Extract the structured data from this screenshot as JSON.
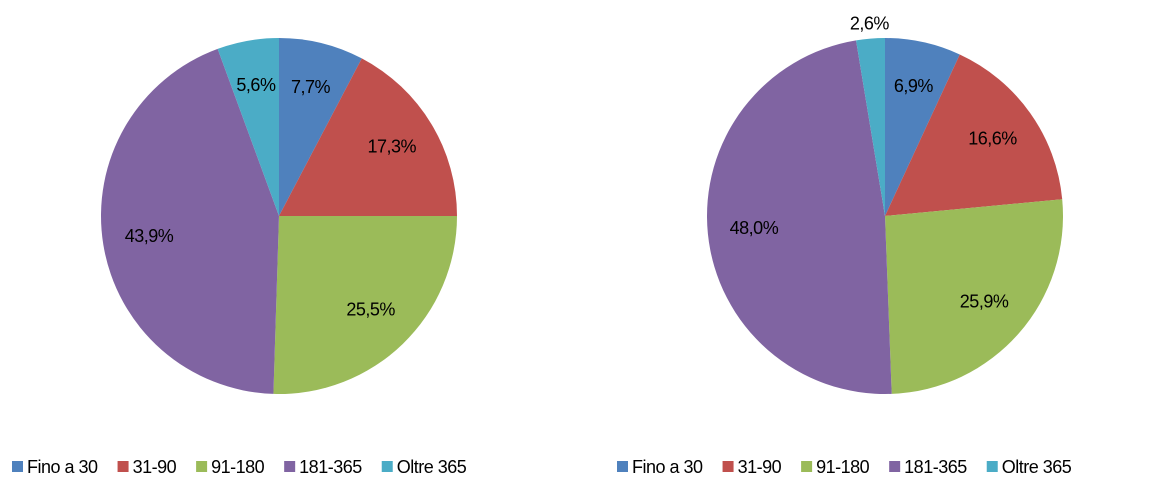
{
  "chart_data": [
    {
      "type": "pie",
      "categories": [
        "Fino a 30",
        "31-90",
        "91-180",
        "181-365",
        "Oltre 365"
      ],
      "values": [
        7.7,
        17.3,
        25.5,
        43.9,
        5.6
      ],
      "value_labels": [
        "7,7%",
        "17,3%",
        "25,5%",
        "43,9%",
        "5,6%"
      ],
      "colors": [
        "#4f81bd",
        "#c0504d",
        "#9bbb59",
        "#8064a2",
        "#4bacc6"
      ]
    },
    {
      "type": "pie",
      "categories": [
        "Fino a 30",
        "31-90",
        "91-180",
        "181-365",
        "Oltre 365"
      ],
      "values": [
        6.9,
        16.6,
        25.9,
        48.0,
        2.6
      ],
      "value_labels": [
        "6,9%",
        "16,6%",
        "25,9%",
        "48,0%",
        "2,6%"
      ],
      "colors": [
        "#4f81bd",
        "#c0504d",
        "#9bbb59",
        "#8064a2",
        "#4bacc6"
      ]
    }
  ]
}
